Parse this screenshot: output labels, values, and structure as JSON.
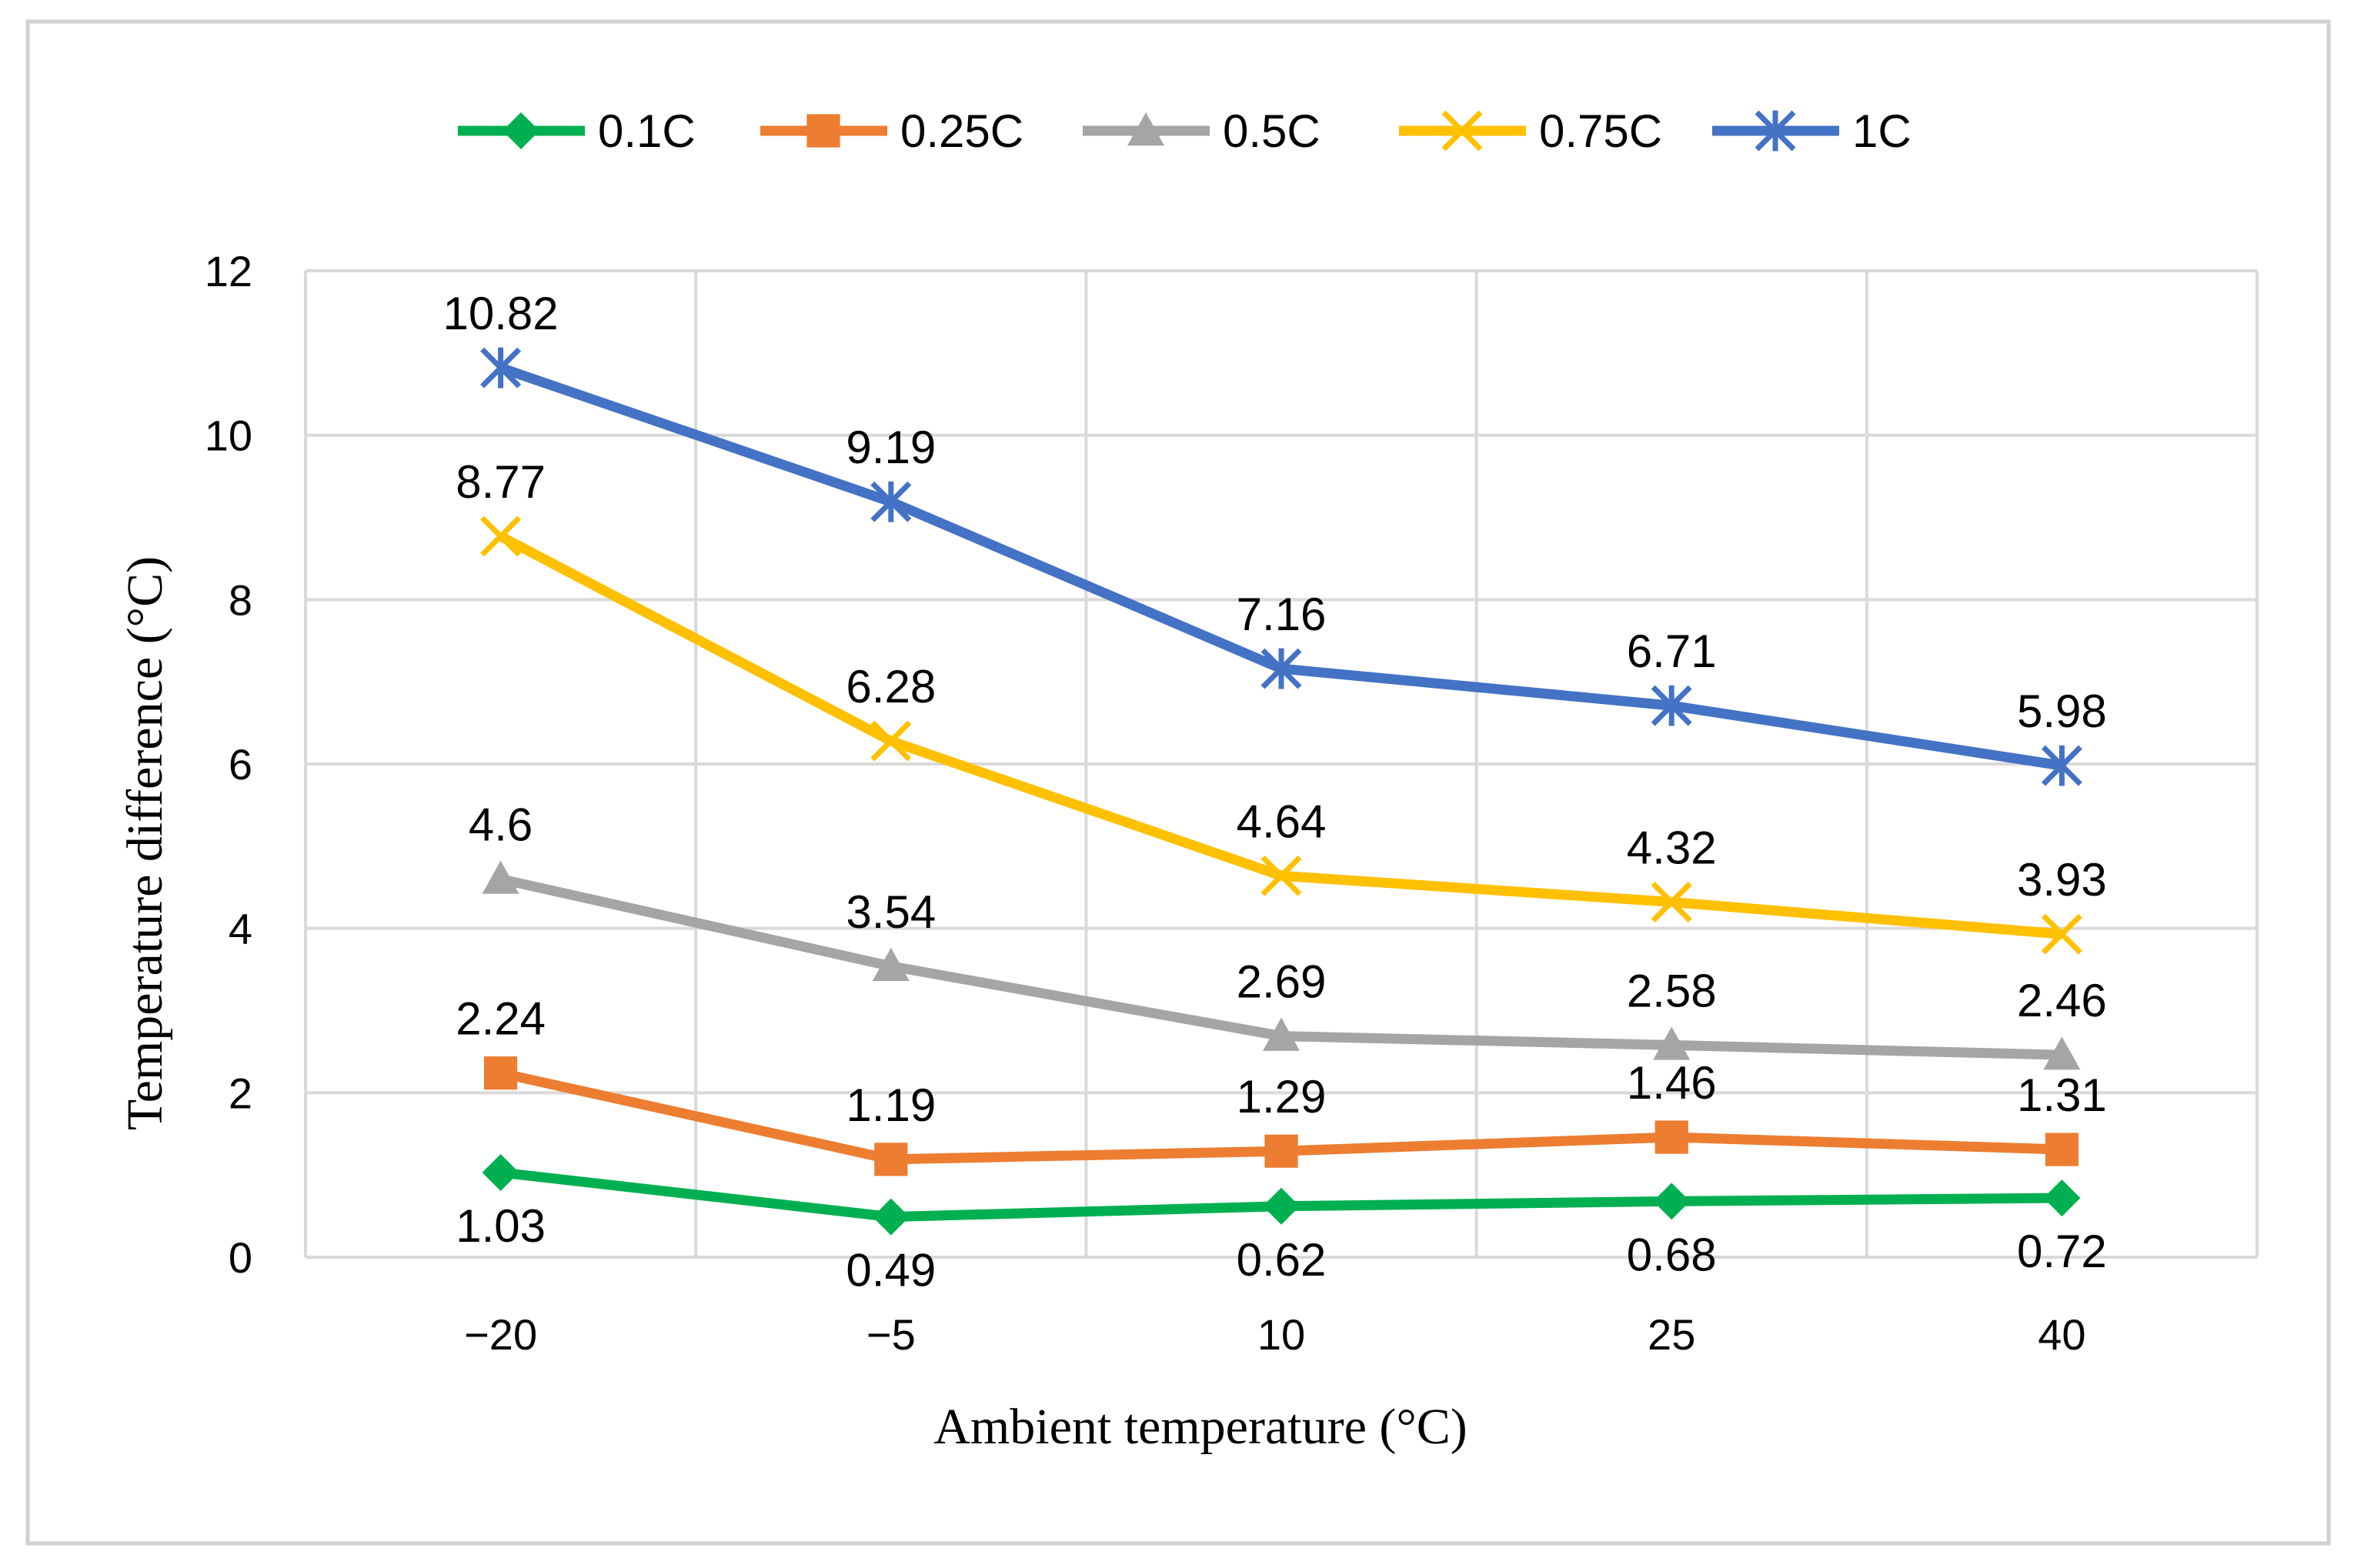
{
  "chart_data": {
    "type": "line",
    "title": "",
    "xlabel": "Ambient temperature (°C)",
    "ylabel": "Temperature difference (°C)",
    "categories": [
      "−20",
      "−5",
      "10",
      "25",
      "40"
    ],
    "ylim": [
      0,
      12
    ],
    "yticks": [
      0,
      2,
      4,
      6,
      8,
      10,
      12
    ],
    "grid": true,
    "legend_position": "top",
    "series": [
      {
        "name": "0.1C",
        "color": "#00b050",
        "marker": "diamond",
        "values": [
          1.03,
          0.49,
          0.62,
          0.68,
          0.72
        ],
        "labels": [
          "1.03",
          "0.49",
          "0.62",
          "0.68",
          "0.72"
        ],
        "label_position": "below"
      },
      {
        "name": "0.25C",
        "color": "#ed7d31",
        "marker": "square",
        "values": [
          2.24,
          1.19,
          1.29,
          1.46,
          1.31
        ],
        "labels": [
          "2.24",
          "1.19",
          "1.29",
          "1.46",
          "1.31"
        ],
        "label_position": "above"
      },
      {
        "name": "0.5C",
        "color": "#a5a5a5",
        "marker": "triangle",
        "values": [
          4.6,
          3.54,
          2.69,
          2.58,
          2.46
        ],
        "labels": [
          "4.6",
          "3.54",
          "2.69",
          "2.58",
          "2.46"
        ],
        "label_position": "above"
      },
      {
        "name": "0.75C",
        "color": "#ffc000",
        "marker": "x",
        "values": [
          8.77,
          6.28,
          4.64,
          4.32,
          3.93
        ],
        "labels": [
          "8.77",
          "6.28",
          "4.64",
          "4.32",
          "3.93"
        ],
        "label_position": "above"
      },
      {
        "name": "1C",
        "color": "#4472c4",
        "marker": "star",
        "values": [
          10.82,
          9.19,
          7.16,
          6.71,
          5.98
        ],
        "labels": [
          "10.82",
          "9.19",
          "7.16",
          "6.71",
          "5.98"
        ],
        "label_position": "above"
      }
    ]
  }
}
